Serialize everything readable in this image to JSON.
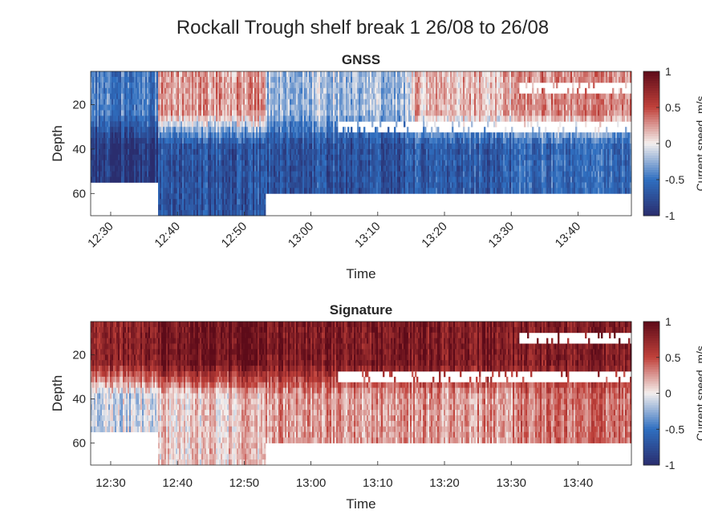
{
  "figure_title": "Rockall Trough shelf break 1 26/08 to 26/08",
  "colormap": {
    "negative": "#2a2d6e",
    "mid_negative": "#2f6fc0",
    "zero": "#f4efed",
    "mid_positive": "#c0413a",
    "positive": "#5d0b19"
  },
  "chart_data": [
    {
      "type": "heatmap",
      "title": "GNSS",
      "xlabel": "Time",
      "ylabel": "Depth",
      "colorbar_label": "Current speed, m/s",
      "x_tick_labels": [
        "12:30",
        "12:40",
        "12:50",
        "13:00",
        "13:10",
        "13:20",
        "13:30",
        "13:40"
      ],
      "x_ticks_rotated": true,
      "y_tick_values": [
        20,
        40,
        60
      ],
      "y_range": [
        5,
        70
      ],
      "y_reversed": true,
      "clim": [
        -1,
        1
      ],
      "colorbar_ticks": [
        "1",
        "0.5",
        "0",
        "-0.5",
        "-1"
      ],
      "x_range": [
        "12:27",
        "13:48"
      ],
      "profiles": [
        {
          "from": "12:27",
          "to": "12:37",
          "upper": -0.45,
          "lower": -0.9
        },
        {
          "from": "12:37",
          "to": "12:53",
          "upper": 0.25,
          "lower": -0.7
        },
        {
          "from": "12:53",
          "to": "13:15",
          "upper": -0.2,
          "lower": -0.7
        },
        {
          "from": "13:15",
          "to": "13:30",
          "upper": 0.15,
          "lower": -0.65
        },
        {
          "from": "13:30",
          "to": "13:48",
          "upper": 0.3,
          "lower": -0.55
        }
      ],
      "valid_depth": [
        {
          "from": "12:27",
          "to": "12:37",
          "top": 5,
          "bottom": 56
        },
        {
          "from": "12:37",
          "to": "12:53",
          "top": 5,
          "bottom": 70
        },
        {
          "from": "12:53",
          "to": "13:48",
          "top": 5,
          "bottom": 61
        }
      ],
      "gaps": [
        {
          "from": "13:04",
          "to": "13:48",
          "top": 28,
          "bottom": 33
        },
        {
          "from": "13:31",
          "to": "13:48",
          "top": 10,
          "bottom": 16
        }
      ]
    },
    {
      "type": "heatmap",
      "title": "Signature",
      "xlabel": "Time",
      "ylabel": "Depth",
      "colorbar_label": "Current speed, m/s",
      "x_tick_labels": [
        "12:30",
        "12:40",
        "12:50",
        "13:00",
        "13:10",
        "13:20",
        "13:30",
        "13:40"
      ],
      "x_ticks_rotated": false,
      "y_tick_values": [
        20,
        40,
        60
      ],
      "y_range": [
        5,
        70
      ],
      "y_reversed": true,
      "clim": [
        -1,
        1
      ],
      "colorbar_ticks": [
        "1",
        "0.5",
        "0",
        "-0.5",
        "-1"
      ],
      "x_range": [
        "12:27",
        "13:48"
      ],
      "profiles": [
        {
          "from": "12:27",
          "to": "12:37",
          "upper": 0.75,
          "lower": -0.1
        },
        {
          "from": "12:37",
          "to": "12:53",
          "upper": 0.9,
          "lower": 0.1
        },
        {
          "from": "12:53",
          "to": "13:30",
          "upper": 0.85,
          "lower": 0.25
        },
        {
          "from": "13:30",
          "to": "13:48",
          "upper": 0.8,
          "lower": 0.35
        }
      ],
      "valid_depth": [
        {
          "from": "12:27",
          "to": "12:37",
          "top": 5,
          "bottom": 56
        },
        {
          "from": "12:37",
          "to": "12:53",
          "top": 5,
          "bottom": 70
        },
        {
          "from": "12:53",
          "to": "13:48",
          "top": 5,
          "bottom": 61
        }
      ],
      "gaps": [
        {
          "from": "13:04",
          "to": "13:48",
          "top": 28,
          "bottom": 33
        },
        {
          "from": "13:31",
          "to": "13:48",
          "top": 10,
          "bottom": 16
        }
      ]
    }
  ]
}
